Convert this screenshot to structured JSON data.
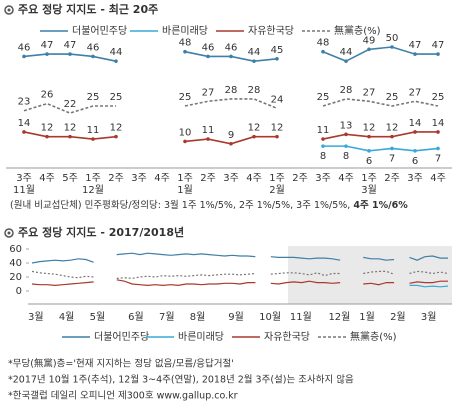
{
  "chart_data": [
    {
      "type": "line",
      "title": "주요 정당 지지도 - 최근 20주",
      "categories": [
        "3주",
        "4주",
        "5주",
        "1주",
        "2주",
        "3주",
        "4주",
        "1주",
        "2주",
        "3주",
        "4주",
        "1주",
        "2주",
        "3주",
        "4주",
        "1주",
        "2주",
        "3주",
        "4주"
      ],
      "month_labels": [
        "11월",
        null,
        null,
        "12월",
        null,
        null,
        null,
        "1월",
        null,
        null,
        null,
        "2월",
        null,
        null,
        null,
        "3월",
        null,
        null,
        null
      ],
      "series": [
        {
          "name": "더불어민주당",
          "color": "#3f7fa8",
          "label_side": "above",
          "values": [
            46,
            47,
            47,
            46,
            44,
            null,
            null,
            48,
            46,
            46,
            44,
            45,
            null,
            48,
            44,
            49,
            50,
            47,
            47
          ]
        },
        {
          "name": "바른미래당",
          "color": "#38a9d9",
          "label_side": "below",
          "values": [
            null,
            null,
            null,
            null,
            null,
            null,
            null,
            null,
            null,
            null,
            null,
            null,
            null,
            8,
            8,
            6,
            7,
            6,
            7
          ]
        },
        {
          "name": "자유한국당",
          "color": "#a8392c",
          "label_side": "above",
          "values": [
            14,
            12,
            12,
            11,
            12,
            null,
            null,
            10,
            11,
            9,
            12,
            12,
            null,
            11,
            13,
            12,
            12,
            14,
            14
          ]
        },
        {
          "name": "無黨층(%)",
          "color": "#777777",
          "dashed": true,
          "label_side": "above",
          "values": [
            23,
            26,
            22,
            25,
            25,
            null,
            null,
            25,
            27,
            28,
            28,
            24,
            null,
            25,
            28,
            27,
            25,
            27,
            25
          ]
        }
      ],
      "note": {
        "text": "(원내 비교섭단체) 민주평화당/정의당: 3월 1주 1%/5%, 2주 1%/5%, 3주 1%/5%, ",
        "bold": "4주 1%/6%"
      }
    },
    {
      "type": "line",
      "title": "주요 정당 지지도 - 2017/2018년",
      "categories": [
        "3월",
        null,
        null,
        null,
        "4월",
        null,
        null,
        null,
        "5월",
        null,
        null,
        null,
        null,
        "6월",
        null,
        null,
        null,
        "7월",
        null,
        null,
        null,
        "8월",
        null,
        null,
        null,
        null,
        "9월",
        null,
        null,
        null,
        "10월",
        null,
        null,
        null,
        "11월",
        null,
        null,
        null,
        null,
        "12월",
        null,
        null,
        null,
        "1월",
        null,
        null,
        null,
        "2월",
        null,
        null,
        null,
        "3월",
        null,
        null,
        null
      ],
      "ylim": [
        0,
        60
      ],
      "yticks": [
        0,
        20,
        40,
        60
      ],
      "series": [
        {
          "name": "더불어민주당",
          "color": "#3f7fa8",
          "values": [
            40,
            42,
            43,
            44,
            43,
            44,
            46,
            45,
            41,
            null,
            null,
            52,
            53,
            54,
            52,
            54,
            53,
            52,
            51,
            52,
            53,
            52,
            53,
            52,
            51,
            50,
            51,
            50,
            50,
            49,
            null,
            49,
            48,
            48,
            48,
            47,
            46,
            47,
            47,
            46,
            44,
            null,
            null,
            48,
            46,
            46,
            44,
            45,
            null,
            48,
            44,
            49,
            50,
            47,
            47
          ]
        },
        {
          "name": "바른미래당",
          "color": "#38a9d9",
          "values": [
            null,
            null,
            null,
            null,
            null,
            null,
            null,
            null,
            null,
            null,
            null,
            null,
            null,
            null,
            null,
            null,
            null,
            null,
            null,
            null,
            null,
            null,
            null,
            null,
            null,
            null,
            null,
            null,
            null,
            null,
            null,
            null,
            null,
            null,
            null,
            null,
            null,
            null,
            null,
            null,
            null,
            null,
            null,
            null,
            null,
            null,
            null,
            null,
            null,
            8,
            8,
            6,
            7,
            6,
            7
          ]
        },
        {
          "name": "자유한국당",
          "color": "#a8392c",
          "values": [
            10,
            9,
            9,
            8,
            9,
            10,
            11,
            12,
            13,
            null,
            null,
            16,
            14,
            10,
            9,
            8,
            9,
            8,
            9,
            8,
            10,
            10,
            9,
            10,
            10,
            11,
            11,
            10,
            12,
            12,
            null,
            11,
            10,
            12,
            13,
            12,
            14,
            12,
            12,
            11,
            12,
            null,
            null,
            10,
            11,
            9,
            12,
            12,
            null,
            11,
            13,
            12,
            12,
            14,
            14
          ]
        },
        {
          "name": "無黨층(%)",
          "color": "#777777",
          "dashed": true,
          "values": [
            28,
            26,
            25,
            24,
            22,
            20,
            19,
            21,
            20,
            null,
            null,
            18,
            19,
            18,
            20,
            21,
            20,
            22,
            21,
            22,
            21,
            22,
            23,
            22,
            23,
            24,
            24,
            23,
            24,
            25,
            null,
            24,
            25,
            26,
            26,
            25,
            23,
            26,
            22,
            25,
            25,
            null,
            null,
            25,
            27,
            28,
            28,
            24,
            null,
            25,
            28,
            27,
            25,
            27,
            25
          ]
        }
      ]
    }
  ],
  "footnotes": [
    "*무당(無黨)층='현재 지지하는 정당 없음/모름/응답거절'",
    "*2017년 10월 1주(추석), 12월 3~4주(연말), 2018년 2월 3주(설)는 조사하지 않음",
    "*한국갤럽 데일리 오피니언 제300호 www.gallup.co.kr"
  ]
}
